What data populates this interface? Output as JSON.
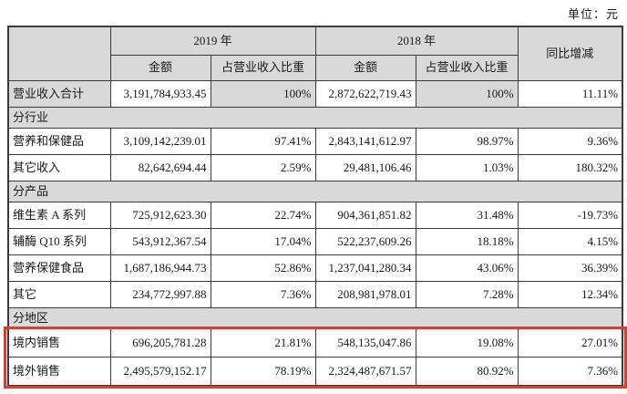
{
  "unit_label": "单位：元",
  "colors": {
    "header_bg": "#d9d9d9",
    "highlight_border": "#e23b2c",
    "border": "#3c3c3c"
  },
  "table": {
    "header": {
      "year_2019": "2019 年",
      "year_2018": "2018 年",
      "amount": "金额",
      "pct_of_revenue": "占营业收入比重",
      "yoy_change": "同比增减"
    },
    "rows": [
      {
        "type": "data",
        "label": "营业收入合计",
        "amount_2019": "3,191,784,933.45",
        "pct_2019": "100%",
        "amount_2018": "2,872,622,719.43",
        "pct_2018": "100%",
        "growth": "11.11%",
        "shaded": true
      },
      {
        "type": "section",
        "label": "分行业"
      },
      {
        "type": "data",
        "label": "营养和保健品",
        "amount_2019": "3,109,142,239.01",
        "pct_2019": "97.41%",
        "amount_2018": "2,843,141,612.97",
        "pct_2018": "98.97%",
        "growth": "9.36%"
      },
      {
        "type": "data",
        "label": "其它收入",
        "amount_2019": "82,642,694.44",
        "pct_2019": "2.59%",
        "amount_2018": "29,481,106.46",
        "pct_2018": "1.03%",
        "growth": "180.32%"
      },
      {
        "type": "section",
        "label": "分产品"
      },
      {
        "type": "data",
        "label": "维生素 A 系列",
        "amount_2019": "725,912,623.30",
        "pct_2019": "22.74%",
        "amount_2018": "904,361,851.82",
        "pct_2018": "31.48%",
        "growth": "-19.73%"
      },
      {
        "type": "data",
        "label": "辅酶 Q10 系列",
        "amount_2019": "543,912,367.54",
        "pct_2019": "17.04%",
        "amount_2018": "522,237,609.26",
        "pct_2018": "18.18%",
        "growth": "4.15%"
      },
      {
        "type": "data",
        "label": "营养保健食品",
        "amount_2019": "1,687,186,944.73",
        "pct_2019": "52.86%",
        "amount_2018": "1,237,041,280.34",
        "pct_2018": "43.06%",
        "growth": "36.39%"
      },
      {
        "type": "data",
        "label": "其它",
        "amount_2019": "234,772,997.88",
        "pct_2019": "7.36%",
        "amount_2018": "208,981,978.01",
        "pct_2018": "7.28%",
        "growth": "12.34%"
      },
      {
        "type": "section",
        "label": "分地区"
      },
      {
        "type": "data",
        "label": "境内销售",
        "amount_2019": "696,205,781.28",
        "pct_2019": "21.81%",
        "amount_2018": "548,135,047.86",
        "pct_2018": "19.08%",
        "growth": "27.01%",
        "highlight": true
      },
      {
        "type": "data",
        "label": "境外销售",
        "amount_2019": "2,495,579,152.17",
        "pct_2019": "78.19%",
        "amount_2018": "2,324,487,671.57",
        "pct_2018": "80.92%",
        "growth": "7.36%",
        "highlight": true
      }
    ]
  }
}
